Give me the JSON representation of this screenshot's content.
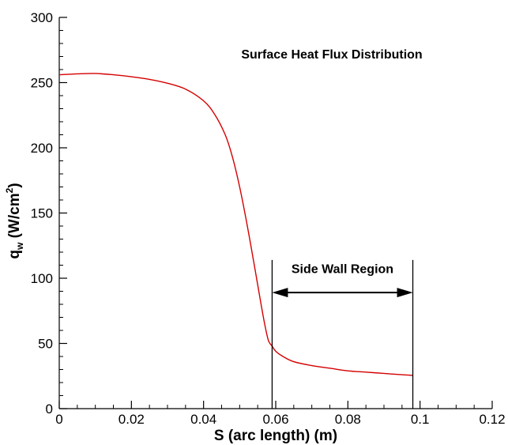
{
  "chart_data": {
    "type": "line",
    "title": "Surface Heat Flux Distribution",
    "xlabel": "S (arc length) (m)",
    "ylabel": {
      "main": "q",
      "subscript": "w",
      "units_open": " (W/cm",
      "superscript": "2",
      "units_close": ")"
    },
    "xlim": [
      0,
      0.12
    ],
    "ylim": [
      0,
      300
    ],
    "xticks": [
      "0",
      "0.02",
      "0.04",
      "0.06",
      "0.08",
      "0.1",
      "0.12"
    ],
    "yticks": [
      "0",
      "50",
      "100",
      "150",
      "200",
      "250",
      "300"
    ],
    "grid": false,
    "series": [
      {
        "color": "#d40000",
        "x": [
          0,
          0.005,
          0.01,
          0.015,
          0.02,
          0.025,
          0.03,
          0.035,
          0.04,
          0.043,
          0.046,
          0.048,
          0.05,
          0.052,
          0.054,
          0.055,
          0.056,
          0.057,
          0.058,
          0.059,
          0.06,
          0.062,
          0.065,
          0.07,
          0.075,
          0.08,
          0.085,
          0.09,
          0.095,
          0.098
        ],
        "y": [
          256,
          256.7,
          257,
          256,
          254.5,
          252.5,
          249.5,
          245,
          236,
          226,
          210,
          193,
          170,
          142,
          111,
          95,
          79,
          64,
          52,
          48,
          44,
          40,
          36,
          33,
          31,
          29,
          28,
          27,
          26,
          25.5
        ]
      }
    ],
    "annotations": [
      {
        "text": "Side Wall Region",
        "x_start": 0.059,
        "x_end": 0.098,
        "arrow": "double"
      }
    ]
  }
}
